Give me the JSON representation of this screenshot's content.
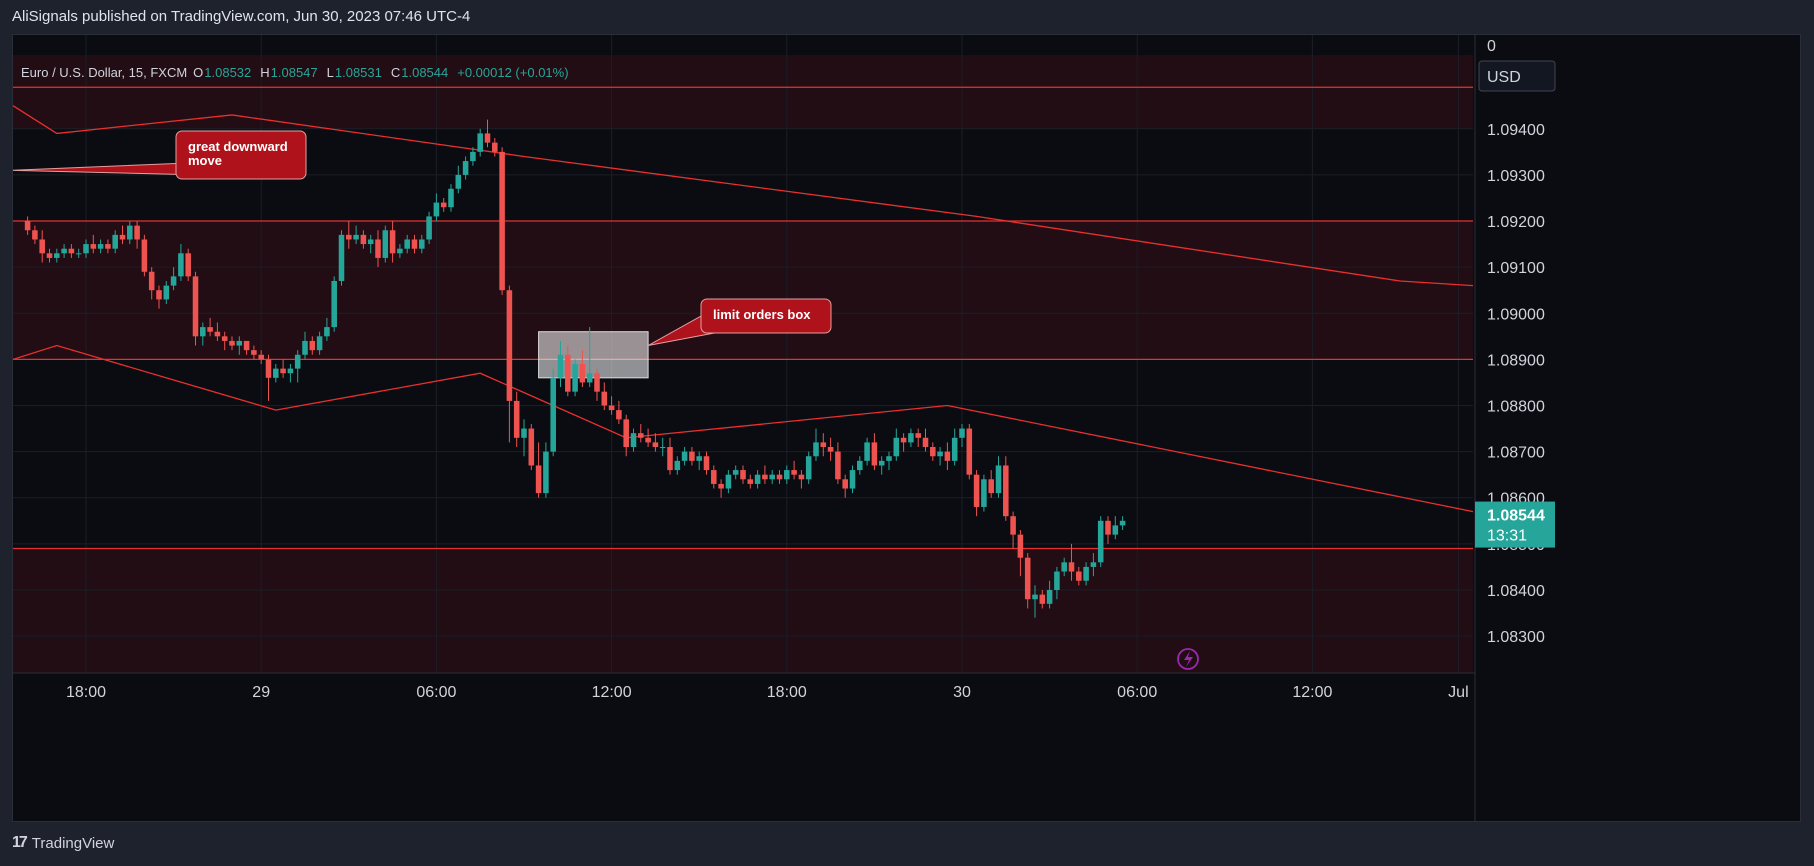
{
  "header": {
    "published_by": "AliSignals published on TradingView.com, Jun 30, 2023 07:46 UTC-4"
  },
  "footer": {
    "brand": "TradingView"
  },
  "legend": {
    "symbol": "Euro / U.S. Dollar, 15, FXCM",
    "o_label": "O",
    "o_value": "1.08532",
    "h_label": "H",
    "h_value": "1.08547",
    "l_label": "L",
    "l_value": "1.08531",
    "c_label": "C",
    "c_value": "1.08544",
    "change": "+0.00012 (+0.01%)"
  },
  "price_axis": {
    "currency": "USD",
    "top_marker": "0",
    "last_price": "1.08544",
    "countdown": "13:31"
  },
  "annotations": [
    {
      "text_lines": [
        "great downward",
        "move"
      ],
      "target_price": 1.0931,
      "target_index": 0
    },
    {
      "text_lines": [
        "limit orders box"
      ],
      "target_price": 1.0893,
      "target_index": 72
    }
  ],
  "colors": {
    "up": "#26a69a",
    "down": "#ef5350",
    "zone": "#ff2020",
    "line": "#e8302f",
    "callout": "#b0121b",
    "last_price": "#26a69a"
  },
  "chart_data": {
    "type": "candlestick",
    "symbol": "EURUSD",
    "timeframe": "15",
    "ylim": [
      1.0822,
      1.0956
    ],
    "y_ticks": [
      "1.08300",
      "1.08400",
      "1.08500",
      "1.08600",
      "1.08700",
      "1.08800",
      "1.08900",
      "1.09000",
      "1.09100",
      "1.09200",
      "1.09300",
      "1.09400"
    ],
    "x_ticks": [
      {
        "label": "18:00",
        "index": 8
      },
      {
        "label": "29",
        "index": 32
      },
      {
        "label": "06:00",
        "index": 56
      },
      {
        "label": "12:00",
        "index": 80
      },
      {
        "label": "18:00",
        "index": 104
      },
      {
        "label": "30",
        "index": 128
      },
      {
        "label": "06:00",
        "index": 152
      },
      {
        "label": "12:00",
        "index": 176
      },
      {
        "label": "Jul",
        "index": 196
      }
    ],
    "xlim": [
      -2,
      198
    ],
    "zones": [
      {
        "from": 1.089,
        "to": 1.092,
        "label": ""
      },
      {
        "from": 1.0822,
        "to": 1.0849,
        "label": ""
      },
      {
        "from": 1.094,
        "to": 1.0956,
        "label": ""
      }
    ],
    "horizontal_lines": [
      1.0949,
      1.092,
      1.089,
      1.0849
    ],
    "trendlines": [
      {
        "points": [
          [
            -2,
            1.0945
          ],
          [
            4,
            1.0939
          ],
          [
            28,
            1.0943
          ],
          [
            68,
            1.0934
          ],
          [
            130,
            1.0921
          ],
          [
            188,
            1.0907
          ],
          [
            198,
            1.0906
          ]
        ]
      },
      {
        "points": [
          [
            -2,
            1.089
          ],
          [
            4,
            1.0893
          ],
          [
            34,
            1.0879
          ],
          [
            62,
            1.0887
          ],
          [
            82,
            1.0873
          ],
          [
            126,
            1.088
          ],
          [
            198,
            1.0857
          ]
        ]
      }
    ],
    "limit_orders_box": {
      "x_from": 70,
      "x_to": 85,
      "y_from": 1.0886,
      "y_to": 1.0896
    },
    "candles": [
      [
        1.092,
        1.0921,
        1.0917,
        1.0918
      ],
      [
        1.0918,
        1.0919,
        1.0915,
        1.0916
      ],
      [
        1.0916,
        1.0918,
        1.0911,
        1.0913
      ],
      [
        1.0913,
        1.0914,
        1.0911,
        1.0912
      ],
      [
        1.0912,
        1.0914,
        1.0911,
        1.0913
      ],
      [
        1.0913,
        1.0915,
        1.0912,
        1.0914
      ],
      [
        1.0914,
        1.0915,
        1.0912,
        1.0913
      ],
      [
        1.0913,
        1.0914,
        1.0912,
        1.0913
      ],
      [
        1.0913,
        1.0916,
        1.0912,
        1.0915
      ],
      [
        1.0915,
        1.0917,
        1.0913,
        1.0914
      ],
      [
        1.0914,
        1.0916,
        1.0913,
        1.0915
      ],
      [
        1.0915,
        1.0916,
        1.0913,
        1.0914
      ],
      [
        1.0914,
        1.0918,
        1.0913,
        1.0917
      ],
      [
        1.0917,
        1.0919,
        1.0915,
        1.0916
      ],
      [
        1.0916,
        1.092,
        1.0915,
        1.0919
      ],
      [
        1.0919,
        1.092,
        1.0914,
        1.0916
      ],
      [
        1.0916,
        1.0917,
        1.0908,
        1.0909
      ],
      [
        1.0909,
        1.091,
        1.0903,
        1.0905
      ],
      [
        1.0905,
        1.0906,
        1.0901,
        1.0903
      ],
      [
        1.0903,
        1.0907,
        1.0902,
        1.0906
      ],
      [
        1.0906,
        1.091,
        1.0905,
        1.0908
      ],
      [
        1.0908,
        1.0915,
        1.0907,
        1.0913
      ],
      [
        1.0913,
        1.0914,
        1.0907,
        1.0908
      ],
      [
        1.0908,
        1.0909,
        1.0893,
        1.0895
      ],
      [
        1.0895,
        1.0898,
        1.0893,
        1.0897
      ],
      [
        1.0897,
        1.0899,
        1.0895,
        1.0896
      ],
      [
        1.0896,
        1.0898,
        1.0894,
        1.0895
      ],
      [
        1.0895,
        1.0896,
        1.0892,
        1.0894
      ],
      [
        1.0894,
        1.0895,
        1.0892,
        1.0893
      ],
      [
        1.0893,
        1.0895,
        1.0891,
        1.0894
      ],
      [
        1.0894,
        1.0894,
        1.0891,
        1.0892
      ],
      [
        1.0892,
        1.0893,
        1.089,
        1.0891
      ],
      [
        1.0891,
        1.0892,
        1.0889,
        1.089
      ],
      [
        1.089,
        1.0891,
        1.0881,
        1.0886
      ],
      [
        1.0886,
        1.0889,
        1.0885,
        1.0888
      ],
      [
        1.0888,
        1.089,
        1.0886,
        1.0887
      ],
      [
        1.0887,
        1.0889,
        1.0885,
        1.0888
      ],
      [
        1.0888,
        1.0892,
        1.0885,
        1.0891
      ],
      [
        1.0891,
        1.0896,
        1.089,
        1.0894
      ],
      [
        1.0894,
        1.0895,
        1.0891,
        1.0892
      ],
      [
        1.0892,
        1.0896,
        1.0891,
        1.0895
      ],
      [
        1.0895,
        1.0899,
        1.0894,
        1.0897
      ],
      [
        1.0897,
        1.0908,
        1.0896,
        1.0907
      ],
      [
        1.0907,
        1.0918,
        1.0906,
        1.0917
      ],
      [
        1.0917,
        1.092,
        1.0914,
        1.0916
      ],
      [
        1.0916,
        1.0919,
        1.0915,
        1.0917
      ],
      [
        1.0917,
        1.0918,
        1.0914,
        1.0915
      ],
      [
        1.0915,
        1.0917,
        1.0913,
        1.0916
      ],
      [
        1.0916,
        1.0918,
        1.091,
        1.0912
      ],
      [
        1.0912,
        1.0919,
        1.0911,
        1.0918
      ],
      [
        1.0918,
        1.092,
        1.0911,
        1.0913
      ],
      [
        1.0913,
        1.0915,
        1.0912,
        1.0914
      ],
      [
        1.0914,
        1.0917,
        1.0913,
        1.0916
      ],
      [
        1.0916,
        1.0917,
        1.0913,
        1.0914
      ],
      [
        1.0914,
        1.0917,
        1.0913,
        1.0916
      ],
      [
        1.0916,
        1.0922,
        1.0915,
        1.0921
      ],
      [
        1.0921,
        1.0926,
        1.092,
        1.0924
      ],
      [
        1.0924,
        1.0925,
        1.0922,
        1.0923
      ],
      [
        1.0923,
        1.0928,
        1.0922,
        1.0927
      ],
      [
        1.0927,
        1.0932,
        1.0926,
        1.093
      ],
      [
        1.093,
        1.0934,
        1.0929,
        1.0933
      ],
      [
        1.0933,
        1.0936,
        1.0932,
        1.0935
      ],
      [
        1.0935,
        1.094,
        1.0934,
        1.0939
      ],
      [
        1.0939,
        1.0942,
        1.0936,
        1.0937
      ],
      [
        1.0937,
        1.0938,
        1.0934,
        1.0935
      ],
      [
        1.0935,
        1.0936,
        1.0904,
        1.0905
      ],
      [
        1.0905,
        1.0906,
        1.0872,
        1.0881
      ],
      [
        1.0881,
        1.0883,
        1.0871,
        1.0873
      ],
      [
        1.0873,
        1.0877,
        1.0869,
        1.0875
      ],
      [
        1.0875,
        1.0876,
        1.0866,
        1.0867
      ],
      [
        1.0867,
        1.0872,
        1.086,
        1.0861
      ],
      [
        1.0861,
        1.0872,
        1.086,
        1.087
      ],
      [
        1.087,
        1.0888,
        1.0869,
        1.0886
      ],
      [
        1.0886,
        1.0894,
        1.0884,
        1.0891
      ],
      [
        1.0891,
        1.0893,
        1.0882,
        1.0883
      ],
      [
        1.0883,
        1.089,
        1.0882,
        1.0889
      ],
      [
        1.0889,
        1.0892,
        1.0884,
        1.0885
      ],
      [
        1.0885,
        1.0897,
        1.0884,
        1.0887
      ],
      [
        1.0887,
        1.0888,
        1.0881,
        1.0883
      ],
      [
        1.0883,
        1.0885,
        1.0879,
        1.088
      ],
      [
        1.088,
        1.0882,
        1.0878,
        1.0879
      ],
      [
        1.0879,
        1.0881,
        1.0876,
        1.0877
      ],
      [
        1.0877,
        1.0878,
        1.0869,
        1.0871
      ],
      [
        1.0871,
        1.0875,
        1.087,
        1.0874
      ],
      [
        1.0874,
        1.0876,
        1.0872,
        1.0873
      ],
      [
        1.0873,
        1.0875,
        1.0871,
        1.0872
      ],
      [
        1.0872,
        1.0874,
        1.087,
        1.0871
      ],
      [
        1.0871,
        1.0873,
        1.0869,
        1.0871
      ],
      [
        1.0871,
        1.0873,
        1.0865,
        1.0866
      ],
      [
        1.0866,
        1.0869,
        1.0865,
        1.0868
      ],
      [
        1.0868,
        1.0871,
        1.0867,
        1.087
      ],
      [
        1.087,
        1.0871,
        1.0867,
        1.0868
      ],
      [
        1.0868,
        1.087,
        1.0866,
        1.0869
      ],
      [
        1.0869,
        1.087,
        1.0865,
        1.0866
      ],
      [
        1.0866,
        1.0867,
        1.0862,
        1.0863
      ],
      [
        1.0863,
        1.0864,
        1.086,
        1.0862
      ],
      [
        1.0862,
        1.0866,
        1.0861,
        1.0865
      ],
      [
        1.0865,
        1.0867,
        1.0864,
        1.0866
      ],
      [
        1.0866,
        1.0867,
        1.0863,
        1.0864
      ],
      [
        1.0864,
        1.0865,
        1.0862,
        1.0863
      ],
      [
        1.0863,
        1.0866,
        1.0862,
        1.0865
      ],
      [
        1.0865,
        1.0867,
        1.0863,
        1.0864
      ],
      [
        1.0864,
        1.0866,
        1.0863,
        1.0865
      ],
      [
        1.0865,
        1.0866,
        1.0863,
        1.0864
      ],
      [
        1.0864,
        1.0867,
        1.0863,
        1.0866
      ],
      [
        1.0866,
        1.0868,
        1.0864,
        1.0865
      ],
      [
        1.0865,
        1.0866,
        1.0862,
        1.0864
      ],
      [
        1.0864,
        1.087,
        1.0863,
        1.0869
      ],
      [
        1.0869,
        1.0875,
        1.0868,
        1.0872
      ],
      [
        1.0872,
        1.0874,
        1.0869,
        1.0871
      ],
      [
        1.0871,
        1.0873,
        1.0868,
        1.087
      ],
      [
        1.087,
        1.0872,
        1.0863,
        1.0864
      ],
      [
        1.0864,
        1.0865,
        1.086,
        1.0862
      ],
      [
        1.0862,
        1.0867,
        1.0861,
        1.0866
      ],
      [
        1.0866,
        1.0869,
        1.0865,
        1.0868
      ],
      [
        1.0868,
        1.0873,
        1.0867,
        1.0872
      ],
      [
        1.0872,
        1.0874,
        1.0866,
        1.0867
      ],
      [
        1.0867,
        1.0869,
        1.0865,
        1.0868
      ],
      [
        1.0868,
        1.087,
        1.0866,
        1.0869
      ],
      [
        1.0869,
        1.0875,
        1.0868,
        1.0873
      ],
      [
        1.0873,
        1.0874,
        1.087,
        1.0872
      ],
      [
        1.0872,
        1.0875,
        1.0871,
        1.0874
      ],
      [
        1.0874,
        1.0875,
        1.0871,
        1.0873
      ],
      [
        1.0873,
        1.0875,
        1.087,
        1.0871
      ],
      [
        1.0871,
        1.0872,
        1.0868,
        1.0869
      ],
      [
        1.0869,
        1.0871,
        1.0867,
        1.087
      ],
      [
        1.087,
        1.0872,
        1.0866,
        1.0868
      ],
      [
        1.0868,
        1.0875,
        1.0867,
        1.0873
      ],
      [
        1.0873,
        1.0876,
        1.0871,
        1.0875
      ],
      [
        1.0875,
        1.0876,
        1.0864,
        1.0865
      ],
      [
        1.0865,
        1.0866,
        1.0856,
        1.0858
      ],
      [
        1.0858,
        1.0865,
        1.0857,
        1.0864
      ],
      [
        1.0864,
        1.0866,
        1.086,
        1.0861
      ],
      [
        1.0861,
        1.0869,
        1.086,
        1.0867
      ],
      [
        1.0867,
        1.0869,
        1.0855,
        1.0856
      ],
      [
        1.0856,
        1.0857,
        1.0849,
        1.0852
      ],
      [
        1.0852,
        1.0853,
        1.0843,
        1.0847
      ],
      [
        1.0847,
        1.0848,
        1.0836,
        1.0838
      ],
      [
        1.0838,
        1.0841,
        1.0834,
        1.0839
      ],
      [
        1.0839,
        1.084,
        1.0836,
        1.0837
      ],
      [
        1.0837,
        1.0842,
        1.0836,
        1.084
      ],
      [
        1.084,
        1.0845,
        1.0838,
        1.0844
      ],
      [
        1.0844,
        1.0847,
        1.0843,
        1.0846
      ],
      [
        1.0846,
        1.085,
        1.0842,
        1.0844
      ],
      [
        1.0844,
        1.0845,
        1.0841,
        1.0842
      ],
      [
        1.0842,
        1.0846,
        1.0841,
        1.0845
      ],
      [
        1.0845,
        1.0848,
        1.0843,
        1.0846
      ],
      [
        1.0846,
        1.0856,
        1.0845,
        1.0855
      ],
      [
        1.0855,
        1.0856,
        1.085,
        1.0852
      ],
      [
        1.0852,
        1.0856,
        1.0851,
        1.0854
      ],
      [
        1.0854,
        1.0856,
        1.0853,
        1.0855
      ]
    ]
  }
}
